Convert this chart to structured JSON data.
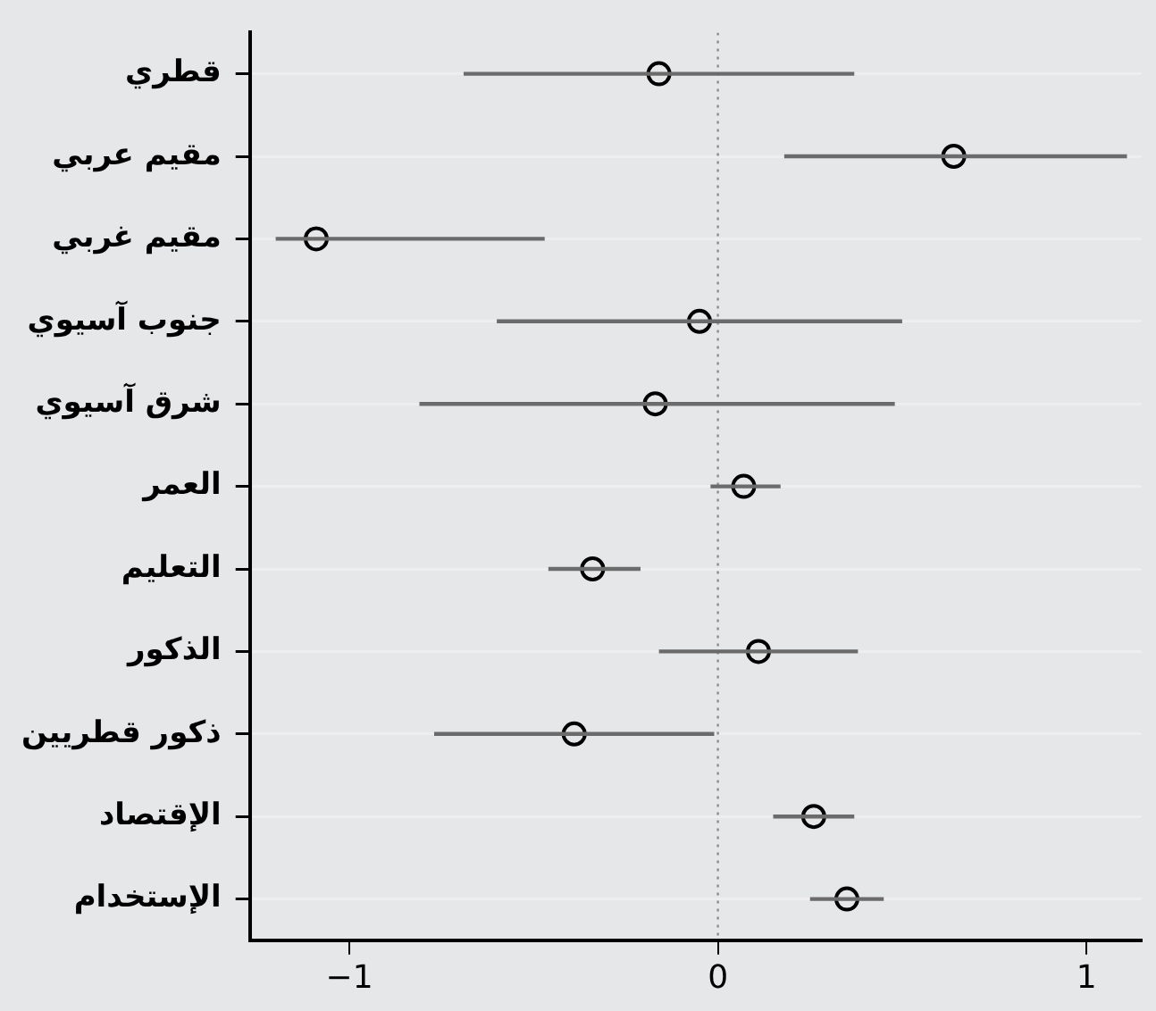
{
  "chart_data": {
    "type": "scatter",
    "orientation": "horizontal",
    "categories": [
      "قطري",
      "مقيم عربي",
      "مقيم غربي",
      "جنوب آسيوي",
      "شرق آسيوي",
      "العمر",
      "التعليم",
      "الذكور",
      "ذكور قطريين",
      "الإقتصاد",
      "الإستخدام"
    ],
    "values": [
      -0.16,
      0.64,
      -1.09,
      -0.05,
      -0.17,
      0.07,
      -0.34,
      0.11,
      -0.39,
      0.26,
      0.35
    ],
    "errors": [
      [
        -0.69,
        0.37
      ],
      [
        0.18,
        1.11
      ],
      [
        -1.2,
        -0.47
      ],
      [
        -0.6,
        0.5
      ],
      [
        -0.81,
        0.48
      ],
      [
        -0.02,
        0.17
      ],
      [
        -0.46,
        -0.21
      ],
      [
        -0.16,
        0.38
      ],
      [
        -0.77,
        -0.01
      ],
      [
        0.15,
        0.37
      ],
      [
        0.25,
        0.45
      ]
    ],
    "color": "#000000",
    "xlim": [
      -1.27,
      1.15
    ],
    "xticks": [
      {
        "value": -1,
        "label": "−1"
      },
      0,
      1
    ],
    "ref_lines": [
      {
        "axis": "x",
        "value": 0,
        "color": "#8c8c8c",
        "line_style": "dotted"
      }
    ],
    "grid": "y",
    "marker": "circle",
    "legend": false
  }
}
